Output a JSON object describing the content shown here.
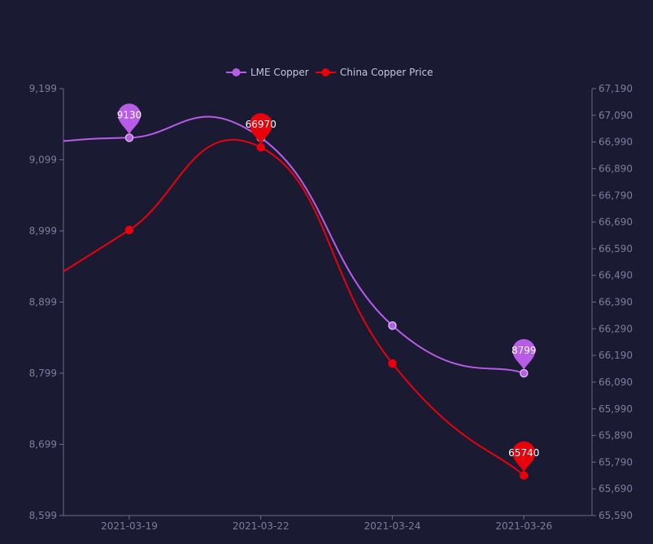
{
  "chart_data": {
    "type": "line",
    "categories": [
      "2021-03-19",
      "2021-03-22",
      "2021-03-24",
      "2021-03-26"
    ],
    "series": [
      {
        "name": "LME Copper",
        "axis": "left",
        "color": "#b75ce6",
        "values": [
          9130,
          9130,
          8866,
          8799
        ],
        "markers": [
          {
            "index": 0,
            "label": "9130"
          },
          {
            "index": 3,
            "label": "8799"
          }
        ]
      },
      {
        "name": "China Copper Price",
        "axis": "right",
        "color": "#e8000b",
        "values": [
          66660,
          66970,
          66160,
          65740
        ],
        "markers": [
          {
            "index": 1,
            "label": "66970"
          },
          {
            "index": 3,
            "label": "65740"
          }
        ]
      }
    ],
    "yleft": {
      "min": 8599,
      "max": 9199,
      "ticks": [
        "8,599",
        "8,699",
        "8,799",
        "8,899",
        "8,999",
        "9,099",
        "9,199"
      ]
    },
    "yright": {
      "min": 65590,
      "max": 67190,
      "ticks": [
        "65,590",
        "65,690",
        "65,790",
        "65,890",
        "65,990",
        "66,090",
        "66,190",
        "66,290",
        "66,390",
        "66,490",
        "66,590",
        "66,690",
        "66,790",
        "66,890",
        "66,990",
        "67,090",
        "67,190"
      ]
    },
    "legend_position": "top-center",
    "grid": false
  }
}
